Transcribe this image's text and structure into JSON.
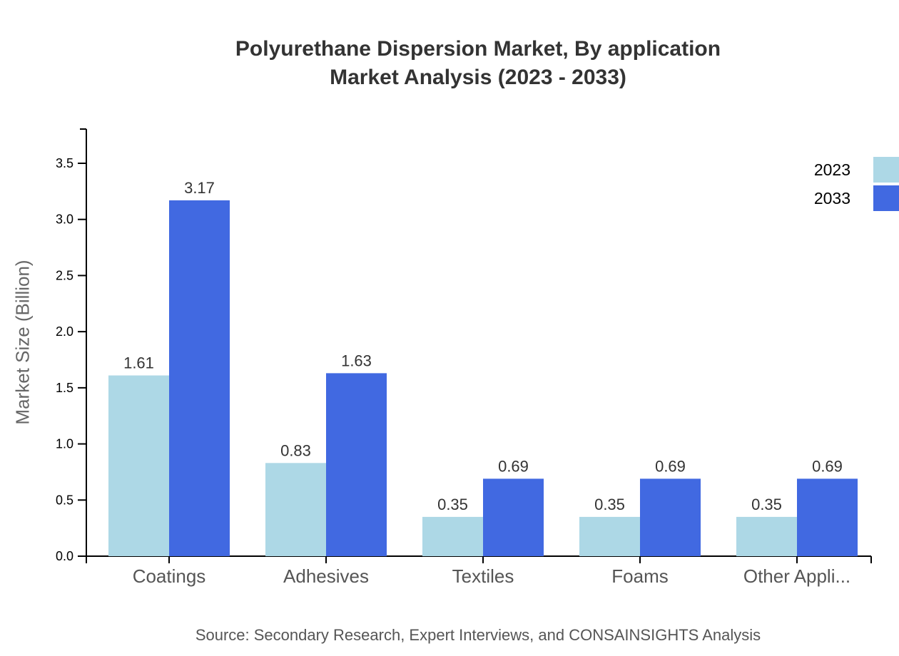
{
  "title_line1": "Polyurethane Dispersion Market, By application",
  "title_line2": "Market Analysis (2023 - 2033)",
  "source": "Source: Secondary Research, Expert Interviews, and CONSAINSIGHTS Analysis",
  "colors": {
    "2023": "#add8e6",
    "2033": "#4169e1"
  },
  "chart_data": {
    "type": "bar",
    "title": "Polyurethane Dispersion Market, By application Market Analysis (2023 - 2033)",
    "xlabel": "",
    "ylabel": "Market Size (Billion)",
    "ylim": [
      0,
      3.8
    ],
    "yticks": [
      "0.0",
      "0.5",
      "1.0",
      "1.5",
      "2.0",
      "2.5",
      "3.0",
      "3.5"
    ],
    "categories": [
      "Coatings",
      "Adhesives",
      "Textiles",
      "Foams",
      "Other Appli..."
    ],
    "series": [
      {
        "name": "2023",
        "color": "#add8e6",
        "values": [
          1.61,
          0.83,
          0.35,
          0.35,
          0.35
        ]
      },
      {
        "name": "2033",
        "color": "#4169e1",
        "values": [
          3.17,
          1.63,
          0.69,
          0.69,
          0.69
        ]
      }
    ],
    "legend": {
      "position": "top-right",
      "entries": [
        "2023",
        "2033"
      ]
    },
    "grid": false
  }
}
